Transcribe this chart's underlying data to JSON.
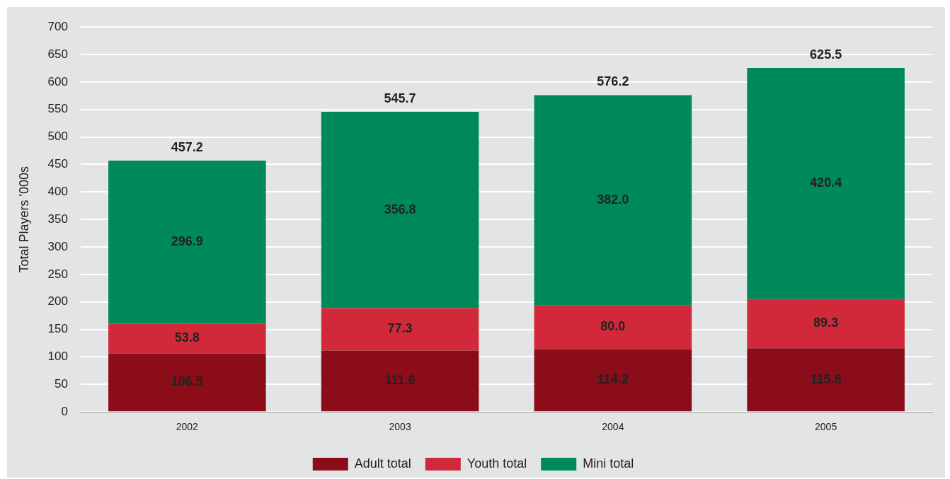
{
  "chart_data": {
    "type": "bar",
    "stacked": true,
    "ylabel": "Total Players '000s",
    "categories": [
      "2002",
      "2003",
      "2004",
      "2005"
    ],
    "series": [
      {
        "name": "Adult total",
        "color": "#8b0d1a",
        "values": [
          106.5,
          111.6,
          114.2,
          115.8
        ],
        "value_labels": [
          "106.5",
          "111.6",
          "114.2",
          "115.8"
        ]
      },
      {
        "name": "Youth total",
        "color": "#d2293a",
        "values": [
          53.8,
          77.3,
          80.0,
          89.3
        ],
        "value_labels": [
          "53.8",
          "77.3",
          "80.0",
          "89.3"
        ]
      },
      {
        "name": "Mini total",
        "color": "#008a5a",
        "values": [
          296.9,
          356.8,
          382.0,
          420.4
        ],
        "value_labels": [
          "296.9",
          "356.8",
          "382.0",
          "420.4"
        ]
      }
    ],
    "totals": [
      "457.2",
      "545.7",
      "576.2",
      "625.5"
    ],
    "ylim": [
      0,
      700
    ],
    "yticks": [
      0,
      50,
      100,
      150,
      200,
      250,
      300,
      350,
      400,
      450,
      500,
      550,
      600,
      650,
      700
    ],
    "grid": "y",
    "legend": "bottom"
  }
}
